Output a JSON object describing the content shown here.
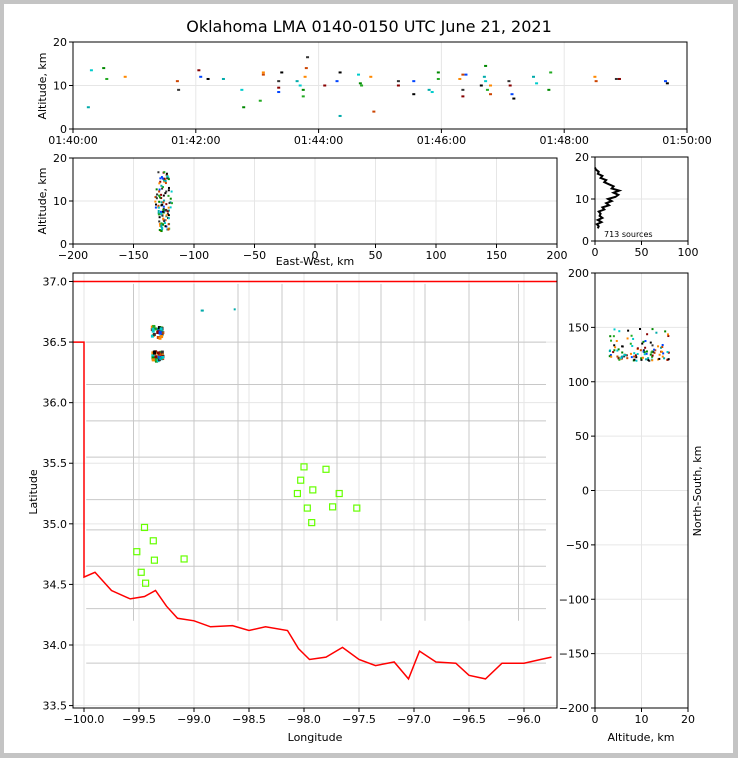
{
  "chart_data": {
    "type": "scatter",
    "title": "Oklahoma LMA 0140-0150 UTC June 21, 2021",
    "source_count_label": "713 sources",
    "colors": {
      "frame": "#c4c4c4",
      "border_state": "#ff0000",
      "county_lines": "#c8c8c8",
      "station_marker": "#66ff00",
      "source_colors": [
        "#00aaaa",
        "#00cccc",
        "#008800",
        "#22aa22",
        "#ff8800",
        "#cc4400",
        "#333333",
        "#880000",
        "#0044ff",
        "#000000"
      ]
    },
    "panels": {
      "time_altitude": {
        "ylabel": "Altitude, km",
        "yticks": [
          "0",
          "10",
          "20"
        ],
        "xticks": [
          "01:40:00",
          "01:42:00",
          "01:44:00",
          "01:46:00",
          "01:48:00",
          "01:50:00"
        ],
        "ylim": [
          0,
          20
        ],
        "xlim_minutes": [
          0,
          10
        ],
        "points": [
          [
            0.25,
            5
          ],
          [
            0.3,
            13.5
          ],
          [
            0.5,
            14
          ],
          [
            0.55,
            11.5
          ],
          [
            0.85,
            12
          ],
          [
            1.7,
            11
          ],
          [
            1.72,
            9
          ],
          [
            2.05,
            13.5
          ],
          [
            2.08,
            12
          ],
          [
            2.2,
            11.5
          ],
          [
            2.45,
            11.5
          ],
          [
            2.75,
            9
          ],
          [
            2.78,
            5
          ],
          [
            3.05,
            6.5
          ],
          [
            3.1,
            13
          ],
          [
            3.1,
            12.5
          ],
          [
            3.35,
            11
          ],
          [
            3.35,
            9.5
          ],
          [
            3.35,
            8.5
          ],
          [
            3.4,
            13
          ],
          [
            3.65,
            11
          ],
          [
            3.7,
            10
          ],
          [
            3.75,
            9
          ],
          [
            3.75,
            7.5
          ],
          [
            3.78,
            12
          ],
          [
            3.8,
            14
          ],
          [
            3.82,
            16.5
          ],
          [
            4.1,
            10
          ],
          [
            4.3,
            11
          ],
          [
            4.35,
            13
          ],
          [
            4.35,
            3
          ],
          [
            4.65,
            12.5
          ],
          [
            4.68,
            10.5
          ],
          [
            4.7,
            10
          ],
          [
            4.85,
            12
          ],
          [
            4.9,
            4
          ],
          [
            5.3,
            11
          ],
          [
            5.3,
            10
          ],
          [
            5.55,
            11
          ],
          [
            5.55,
            8
          ],
          [
            5.8,
            9
          ],
          [
            5.85,
            8.5
          ],
          [
            5.95,
            13
          ],
          [
            5.95,
            11.5
          ],
          [
            6.3,
            11.5
          ],
          [
            6.35,
            12.5
          ],
          [
            6.35,
            9
          ],
          [
            6.35,
            7.5
          ],
          [
            6.4,
            12.5
          ],
          [
            6.65,
            10
          ],
          [
            6.7,
            12
          ],
          [
            6.72,
            11
          ],
          [
            6.72,
            14.5
          ],
          [
            6.75,
            9
          ],
          [
            6.8,
            10
          ],
          [
            6.8,
            8
          ],
          [
            7.1,
            11
          ],
          [
            7.12,
            10
          ],
          [
            7.15,
            8
          ],
          [
            7.18,
            7
          ],
          [
            7.5,
            12
          ],
          [
            7.55,
            10.5
          ],
          [
            7.75,
            9
          ],
          [
            7.78,
            13
          ],
          [
            8.5,
            12
          ],
          [
            8.52,
            11
          ],
          [
            8.85,
            11.5
          ],
          [
            8.9,
            11.5
          ],
          [
            9.65,
            11
          ],
          [
            9.68,
            10.5
          ]
        ]
      },
      "east_west_altitude": {
        "xlabel": "East-West, km",
        "ylabel": "Altitude, km",
        "xticks": [
          "−200",
          "−150",
          "−100",
          "−50",
          "0",
          "50",
          "100",
          "150",
          "200"
        ],
        "yticks": [
          "0",
          "10",
          "20"
        ],
        "xlim": [
          -200,
          200
        ],
        "ylim": [
          0,
          20
        ]
      },
      "altitude_histogram": {
        "xticks": [
          "0",
          "50",
          "100"
        ],
        "yticks": [
          "0",
          "10",
          "20"
        ],
        "xlim": [
          0,
          100
        ],
        "ylim": [
          0,
          20
        ],
        "profile": [
          [
            3,
            3
          ],
          [
            4,
            3.5
          ],
          [
            2,
            4
          ],
          [
            7,
            4.5
          ],
          [
            3,
            5
          ],
          [
            8,
            5.5
          ],
          [
            5,
            6
          ],
          [
            6,
            6.5
          ],
          [
            4,
            7
          ],
          [
            10,
            7.5
          ],
          [
            8,
            8
          ],
          [
            15,
            8.5
          ],
          [
            12,
            9
          ],
          [
            18,
            9.5
          ],
          [
            14,
            10
          ],
          [
            22,
            10.5
          ],
          [
            25,
            11
          ],
          [
            20,
            11.5
          ],
          [
            26,
            12
          ],
          [
            18,
            12.5
          ],
          [
            20,
            13
          ],
          [
            15,
            13.5
          ],
          [
            10,
            14
          ],
          [
            12,
            14.5
          ],
          [
            6,
            15
          ],
          [
            8,
            15.5
          ],
          [
            3,
            16
          ],
          [
            4,
            16.5
          ],
          [
            1,
            17
          ],
          [
            0,
            17.5
          ]
        ]
      },
      "map": {
        "xlabel": "Longitude",
        "ylabel": "Latitude",
        "xticks": [
          "−100.0",
          "−99.5",
          "−99.0",
          "−98.5",
          "−98.0",
          "−97.5",
          "−97.0",
          "−96.5",
          "−96.0"
        ],
        "yticks": [
          "33.5",
          "34.0",
          "34.5",
          "35.0",
          "35.5",
          "36.0",
          "36.5",
          "37.0"
        ],
        "xlim": [
          -100.1,
          -95.7
        ],
        "ylim": [
          33.48,
          37.07
        ],
        "stations": [
          [
            -99.45,
            34.97
          ],
          [
            -99.37,
            34.86
          ],
          [
            -99.52,
            34.77
          ],
          [
            -99.36,
            34.7
          ],
          [
            -99.09,
            34.71
          ],
          [
            -99.48,
            34.6
          ],
          [
            -99.44,
            34.51
          ],
          [
            -98.0,
            35.47
          ],
          [
            -97.8,
            35.45
          ],
          [
            -98.03,
            35.36
          ],
          [
            -97.92,
            35.28
          ],
          [
            -98.06,
            35.25
          ],
          [
            -97.68,
            35.25
          ],
          [
            -97.97,
            35.13
          ],
          [
            -97.74,
            35.14
          ],
          [
            -97.52,
            35.13
          ],
          [
            -97.93,
            35.01
          ]
        ],
        "outliers": [
          [
            -98.93,
            36.76
          ],
          [
            -98.92,
            36.76
          ],
          [
            -98.63,
            36.77
          ]
        ]
      },
      "north_south_altitude": {
        "xlabel": "Altitude, km",
        "ylabel": "North-South, km",
        "xticks": [
          "0",
          "10",
          "20"
        ],
        "yticks": [
          "200",
          "150",
          "100",
          "50",
          "0",
          "−50",
          "−100",
          "−150",
          "−200"
        ],
        "xlim": [
          0,
          20
        ],
        "ylim": [
          -200,
          200
        ]
      }
    }
  }
}
